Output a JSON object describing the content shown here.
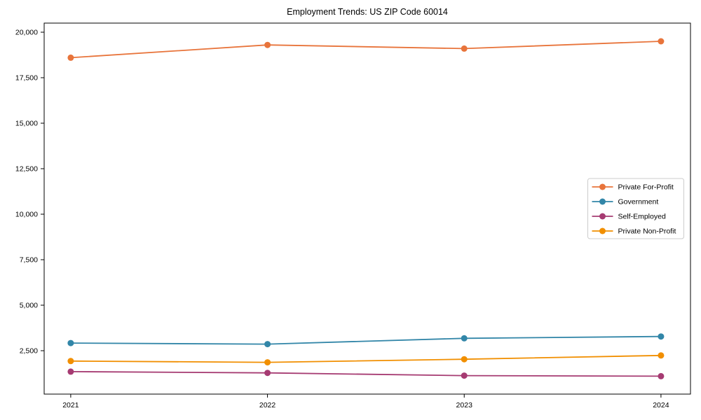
{
  "page": {
    "background": "#ffffff"
  },
  "chart_data": {
    "type": "line",
    "title": "Employment Trends: US ZIP Code 60014",
    "xlabel": "",
    "ylabel": "",
    "x": [
      2021,
      2022,
      2023,
      2024
    ],
    "xtick_labels": [
      "2021",
      "2022",
      "2023",
      "2024"
    ],
    "yticks": [
      2500,
      5000,
      7500,
      10000,
      12500,
      15000,
      17500,
      20000
    ],
    "ytick_labels": [
      "2,500",
      "5,000",
      "7,500",
      "10,000",
      "12,500",
      "15,000",
      "17,500",
      "20,000"
    ],
    "xlim": [
      2020.865,
      2024.15
    ],
    "ylim": [
      115,
      20500
    ],
    "grid": false,
    "legend_position": "center-right",
    "marker": "circle",
    "series": [
      {
        "name": "Private For-Profit",
        "color": "#E8743B",
        "values": [
          18600,
          19300,
          19100,
          19500
        ]
      },
      {
        "name": "Government",
        "color": "#3286A8",
        "values": [
          2920,
          2860,
          3180,
          3280
        ]
      },
      {
        "name": "Self-Employed",
        "color": "#A63B72",
        "values": [
          1350,
          1280,
          1130,
          1100
        ]
      },
      {
        "name": "Private Non-Profit",
        "color": "#F18F01",
        "values": [
          1930,
          1860,
          2030,
          2240
        ]
      }
    ],
    "axis_color": "#000000",
    "legend_border_color": "#cccccc",
    "legend_background": "#ffffff"
  }
}
